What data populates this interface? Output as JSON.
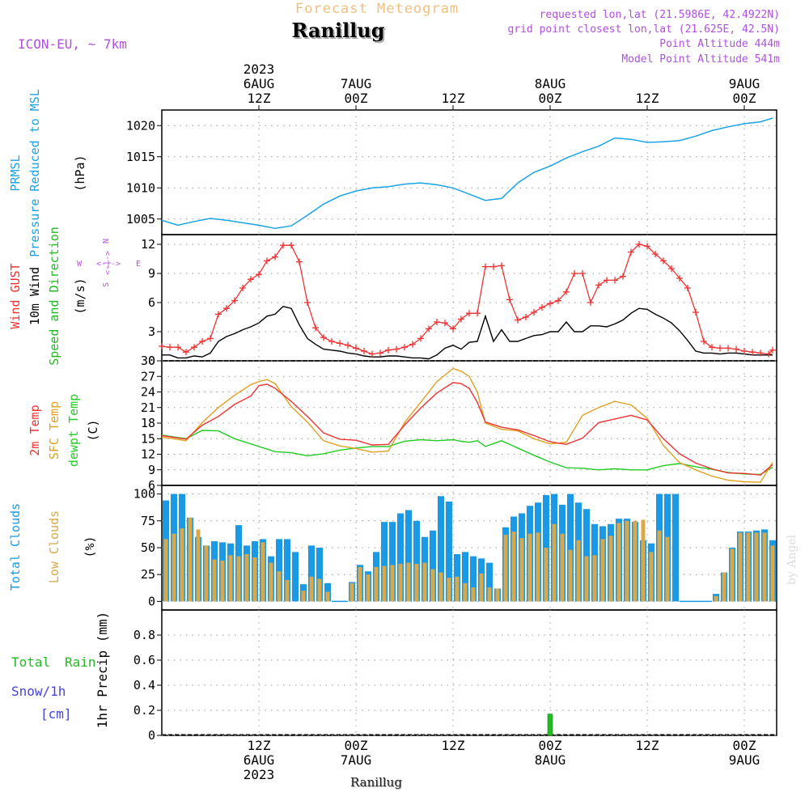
{
  "header": {
    "product_title": "Forecast Meteogram",
    "location": "Ranillug",
    "model": "ICON-EU, ~ 7km",
    "requested": "requested lon,lat (21.5986E, 42.4922N)",
    "grid_point": "grid point closest lon,lat (21.625E, 42.5N)",
    "point_altitude": "Point Altitude 444m",
    "model_altitude": "Model Point Altitude 541m"
  },
  "footer": {
    "location": "Ranillug",
    "credit": "by Angel"
  },
  "colors": {
    "pressure": "#1aa3e6",
    "gust": "#ee3333",
    "wind": "#000000",
    "dir_label": "#22bb22",
    "t2m": "#ee3333",
    "tsfc": "#e0a020",
    "dewpt": "#22cc22",
    "total_clouds": "#1a9ae6",
    "low_clouds": "#d8a84a",
    "rain": "#22bb22",
    "snow": "#4444dd",
    "compass": "#bb55dd",
    "title_orange": "#f0c080",
    "meta_purple": "#b050e0"
  },
  "time_axis": {
    "top_labels": [
      {
        "t": 12,
        "lines": [
          "2023",
          "6AUG",
          "12Z"
        ]
      },
      {
        "t": 24,
        "lines": [
          "7AUG",
          "00Z"
        ]
      },
      {
        "t": 36,
        "lines": [
          "12Z"
        ]
      },
      {
        "t": 48,
        "lines": [
          "8AUG",
          "00Z"
        ]
      },
      {
        "t": 60,
        "lines": [
          "12Z"
        ]
      },
      {
        "t": 72,
        "lines": [
          "9AUG",
          "00Z"
        ]
      }
    ],
    "bottom_labels": [
      {
        "t": 12,
        "lines": [
          "12Z",
          "6AUG",
          "2023"
        ]
      },
      {
        "t": 24,
        "lines": [
          "00Z",
          "7AUG"
        ]
      },
      {
        "t": 36,
        "lines": [
          "12Z"
        ]
      },
      {
        "t": 48,
        "lines": [
          "00Z",
          "8AUG"
        ]
      },
      {
        "t": 60,
        "lines": [
          "12Z"
        ]
      },
      {
        "t": 72,
        "lines": [
          "00Z",
          "9AUG"
        ]
      }
    ]
  },
  "panels": {
    "pressure": {
      "labels": [
        {
          "text": "PRMSL",
          "color": "#1aa3e6"
        },
        {
          "text": "Pressure Reduced to MSL",
          "color": "#1aa3e6"
        },
        {
          "text": "(hPa)",
          "color": "#000000"
        }
      ]
    },
    "wind": {
      "labels": [
        {
          "text": "Wind GUST",
          "color": "#ee3333"
        },
        {
          "text": "10m Wind",
          "color": "#000000"
        },
        {
          "text": "Speed and Direction",
          "color": "#22bb22"
        },
        {
          "text": "(m/s)",
          "color": "#000000"
        }
      ],
      "compass": {
        "n": "N",
        "s": "S",
        "w": "W",
        "e": "E",
        "arrows": "<-|->"
      }
    },
    "temp": {
      "labels": [
        {
          "text": "2m Temp",
          "color": "#ee3333"
        },
        {
          "text": "SFC Temp",
          "color": "#e0a020"
        },
        {
          "text": "dewpt Temp",
          "color": "#22cc22"
        },
        {
          "text": "(C)",
          "color": "#000000"
        }
      ]
    },
    "clouds": {
      "labels": [
        {
          "text": "Total Clouds",
          "color": "#1a9ae6"
        },
        {
          "text": "Low Clouds",
          "color": "#d8a84a"
        },
        {
          "text": "(%)",
          "color": "#000000"
        }
      ]
    },
    "precip": {
      "labels": [
        {
          "text": "Total",
          "color": "#22bb22"
        },
        {
          "text": "Rain",
          "color": "#22bb22"
        },
        {
          "text": "Snow/1h",
          "color": "#4444dd"
        },
        {
          "text": "[cm]",
          "color": "#4444dd"
        },
        {
          "text": "1hr Precip (mm)",
          "color": "#000000"
        }
      ]
    }
  },
  "chart_data": [
    {
      "type": "line",
      "title": "Pressure Reduced to MSL",
      "ylabel": "(hPa)",
      "x_unit": "forecast hour (0 = 6AUG 00Z)",
      "ylim": [
        1002.5,
        1022.5
      ],
      "yticks": [
        1005,
        1010,
        1015,
        1020
      ],
      "x": [
        0,
        2,
        4,
        6,
        8,
        10,
        12,
        14,
        16,
        18,
        20,
        22,
        24,
        26,
        28,
        30,
        32,
        34,
        36,
        38,
        40,
        42,
        44,
        46,
        48,
        50,
        52,
        54,
        56,
        58,
        60,
        62,
        64,
        66,
        68,
        70,
        72,
        74,
        75.5
      ],
      "series": [
        {
          "name": "PRMSL",
          "values": [
            1004.8,
            1004.0,
            1004.6,
            1005.1,
            1004.8,
            1004.4,
            1004.0,
            1003.5,
            1003.9,
            1005.6,
            1007.4,
            1008.7,
            1009.5,
            1010.0,
            1010.2,
            1010.6,
            1010.8,
            1010.5,
            1010.0,
            1009.0,
            1008.0,
            1008.3,
            1010.8,
            1012.5,
            1013.5,
            1014.8,
            1015.8,
            1016.7,
            1018.0,
            1017.8,
            1017.3,
            1017.4,
            1017.6,
            1018.3,
            1019.2,
            1019.8,
            1020.3,
            1020.6,
            1021.2
          ]
        }
      ]
    },
    {
      "type": "line",
      "title": "Wind GUST / 10m Wind Speed and Direction",
      "ylabel": "(m/s)",
      "ylim": [
        0,
        13
      ],
      "yticks": [
        0,
        3,
        6,
        9,
        12
      ],
      "x": [
        0,
        1,
        2,
        3,
        4,
        5,
        6,
        7,
        8,
        9,
        10,
        11,
        12,
        13,
        14,
        15,
        16,
        17,
        18,
        19,
        20,
        21,
        22,
        23,
        24,
        25,
        26,
        27,
        28,
        29,
        30,
        31,
        32,
        33,
        34,
        35,
        36,
        37,
        38,
        39,
        40,
        41,
        42,
        43,
        44,
        45,
        46,
        47,
        48,
        49,
        50,
        51,
        52,
        53,
        54,
        55,
        56,
        57,
        58,
        59,
        60,
        61,
        62,
        63,
        64,
        65,
        66,
        67,
        68,
        69,
        70,
        71,
        72,
        73,
        74,
        75,
        75.5
      ],
      "series": [
        {
          "name": "Wind GUST",
          "values": [
            1.5,
            1.4,
            1.4,
            0.9,
            1.4,
            2.0,
            2.3,
            4.8,
            5.4,
            6.2,
            7.5,
            8.4,
            8.9,
            10.3,
            10.7,
            11.9,
            11.9,
            10.2,
            6.0,
            3.4,
            2.4,
            2.0,
            1.8,
            1.6,
            1.3,
            1.0,
            0.7,
            0.8,
            1.1,
            1.2,
            1.4,
            1.7,
            2.3,
            3.3,
            4.0,
            3.9,
            3.3,
            4.3,
            4.9,
            4.9,
            9.7,
            9.7,
            9.8,
            6.3,
            4.2,
            4.5,
            5.0,
            5.5,
            5.9,
            6.2,
            7.1,
            9.0,
            9.0,
            6.0,
            7.8,
            8.3,
            8.3,
            8.7,
            11.2,
            12.0,
            11.8,
            11.0,
            10.3,
            9.5,
            8.5,
            7.5,
            5.0,
            2.0,
            1.4,
            1.3,
            1.3,
            1.2,
            1.0,
            0.9,
            0.8,
            0.7,
            1.1
          ]
        },
        {
          "name": "10m Wind",
          "values": [
            0.6,
            0.6,
            0.3,
            0.3,
            0.5,
            0.4,
            0.8,
            2.0,
            2.5,
            2.8,
            3.2,
            3.5,
            3.9,
            4.6,
            4.8,
            5.6,
            5.4,
            3.7,
            2.3,
            1.7,
            1.2,
            1.1,
            1.0,
            0.8,
            0.7,
            0.5,
            0.4,
            0.4,
            0.5,
            0.5,
            0.4,
            0.3,
            0.3,
            0.2,
            0.6,
            1.3,
            1.6,
            1.2,
            1.9,
            2.0,
            4.6,
            2.0,
            3.2,
            2.0,
            2.0,
            2.3,
            2.6,
            2.7,
            3.0,
            3.0,
            4.0,
            3.0,
            3.0,
            3.6,
            3.6,
            3.5,
            3.8,
            4.2,
            4.9,
            5.4,
            5.3,
            4.8,
            4.4,
            3.9,
            3.1,
            2.1,
            1.0,
            0.8,
            0.8,
            0.7,
            0.8,
            0.8,
            0.7,
            0.6,
            0.6,
            0.6,
            0.6
          ]
        }
      ]
    },
    {
      "type": "line",
      "title": "2m Temp / SFC Temp / dewpt Temp",
      "ylabel": "(C)",
      "ylim": [
        6,
        30
      ],
      "yticks": [
        6,
        9,
        12,
        15,
        18,
        21,
        24,
        27,
        30
      ],
      "x": [
        0,
        3,
        5,
        7,
        9,
        11,
        12,
        13,
        14,
        16,
        18,
        20,
        22,
        24,
        26,
        28,
        30,
        32,
        34,
        36,
        37,
        38,
        39,
        40,
        42,
        44,
        46,
        48,
        50,
        52,
        54,
        56,
        58,
        60,
        62,
        64,
        66,
        68,
        70,
        72,
        74,
        75.5
      ],
      "series": [
        {
          "name": "2m Temp",
          "values": [
            15.6,
            14.9,
            17.6,
            19.3,
            21.6,
            23.2,
            25.2,
            25.5,
            24.7,
            22.2,
            19.3,
            16.1,
            14.9,
            14.7,
            13.8,
            13.9,
            17.6,
            20.9,
            23.8,
            25.8,
            25.6,
            24.7,
            22.0,
            18.2,
            17.2,
            16.7,
            15.6,
            14.4,
            13.9,
            15.1,
            18.1,
            18.8,
            19.5,
            18.6,
            15.0,
            12.1,
            10.3,
            9.2,
            8.4,
            8.3,
            8.0,
            10.0
          ]
        },
        {
          "name": "SFC Temp",
          "values": [
            15.3,
            14.6,
            18.1,
            21.0,
            23.4,
            25.4,
            26.0,
            26.4,
            25.6,
            21.2,
            18.2,
            14.6,
            13.6,
            13.1,
            12.4,
            12.6,
            18.1,
            22.0,
            26.0,
            28.5,
            28.0,
            27.0,
            24.0,
            18.0,
            16.8,
            16.5,
            15.0,
            14.0,
            14.3,
            19.5,
            21.0,
            22.2,
            21.5,
            18.9,
            13.7,
            10.4,
            9.0,
            7.8,
            7.0,
            6.7,
            6.6,
            10.4
          ]
        },
        {
          "name": "dewpt Temp",
          "values": [
            15.7,
            15.0,
            16.6,
            16.5,
            15.0,
            14.0,
            13.5,
            13.0,
            12.5,
            12.3,
            11.7,
            12.1,
            12.8,
            13.2,
            13.5,
            13.5,
            14.5,
            14.8,
            14.6,
            14.8,
            14.5,
            14.3,
            14.6,
            13.5,
            14.6,
            13.2,
            11.8,
            10.5,
            9.4,
            9.3,
            9.0,
            9.2,
            9.0,
            9.0,
            9.8,
            10.2,
            9.6,
            9.1,
            8.5,
            8.2,
            8.1,
            9.5
          ]
        }
      ]
    },
    {
      "type": "bar",
      "title": "Total Clouds / Low Clouds",
      "ylabel": "(%)",
      "ylim": [
        -8,
        108
      ],
      "yticks": [
        0,
        25,
        50,
        75,
        100
      ],
      "x": [
        0,
        1,
        2,
        3,
        4,
        5,
        6,
        7,
        8,
        9,
        10,
        11,
        12,
        13,
        14,
        15,
        16,
        17,
        18,
        19,
        20,
        21,
        22,
        23,
        24,
        25,
        26,
        27,
        28,
        29,
        30,
        31,
        32,
        33,
        34,
        35,
        36,
        37,
        38,
        39,
        40,
        41,
        42,
        43,
        44,
        45,
        46,
        47,
        48,
        49,
        50,
        51,
        52,
        53,
        54,
        55,
        56,
        57,
        58,
        59,
        60,
        61,
        62,
        63,
        64,
        65,
        66,
        67,
        68,
        69,
        70,
        71,
        72,
        73,
        74,
        75
      ],
      "series": [
        {
          "name": "Total Clouds",
          "values": [
            94,
            100,
            100,
            78,
            60,
            52,
            56,
            55,
            54,
            71,
            52,
            56,
            58,
            42,
            58,
            58,
            46,
            16,
            52,
            50,
            17,
            0,
            0,
            18,
            34,
            28,
            46,
            74,
            74,
            82,
            85,
            75,
            60,
            66,
            98,
            93,
            44,
            46,
            42,
            40,
            36,
            12,
            69,
            79,
            82,
            89,
            92,
            99,
            100,
            90,
            100,
            92,
            86,
            72,
            70,
            72,
            77,
            77,
            74,
            57,
            54,
            100,
            100,
            100,
            0,
            0,
            0,
            0,
            7,
            27,
            50,
            65,
            65,
            66,
            67,
            57
          ]
        },
        {
          "name": "Low Clouds",
          "values": [
            58,
            63,
            68,
            78,
            67,
            52,
            39,
            38,
            43,
            42,
            44,
            41,
            55,
            36,
            28,
            20,
            0,
            10,
            23,
            21,
            9,
            0,
            0,
            17,
            32,
            25,
            32,
            33,
            34,
            35,
            36,
            35,
            36,
            30,
            27,
            22,
            23,
            17,
            13,
            26,
            13,
            12,
            62,
            65,
            59,
            63,
            64,
            50,
            72,
            63,
            48,
            57,
            42,
            43,
            58,
            61,
            73,
            75,
            75,
            76,
            46,
            66,
            60,
            0,
            0,
            0,
            0,
            0,
            5,
            27,
            49,
            64,
            64,
            64,
            64,
            52
          ]
        }
      ]
    },
    {
      "type": "bar",
      "title": "1hr Precip",
      "ylabel": "1hr Precip (mm)",
      "ylim": [
        0,
        1.0
      ],
      "yticks": [
        0,
        0.2,
        0.4,
        0.6,
        0.8
      ],
      "x": [
        48
      ],
      "series": [
        {
          "name": "Total Rain",
          "values": [
            0.17
          ]
        },
        {
          "name": "Snow/1h",
          "values": [
            0
          ]
        }
      ]
    }
  ]
}
